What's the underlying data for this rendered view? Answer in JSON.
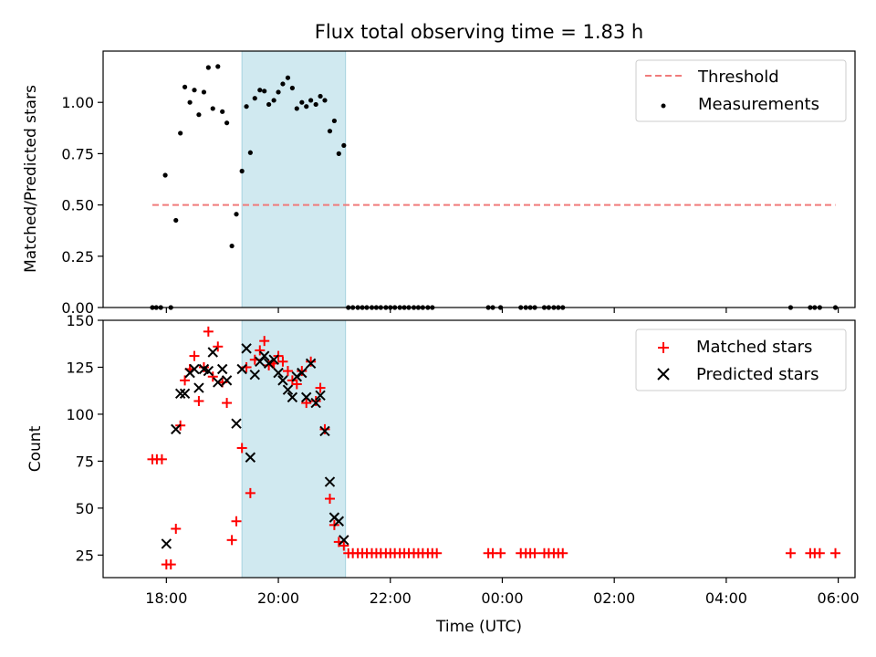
{
  "title": "Flux total observing time = 1.83 h",
  "xlabel": "Time (UTC)",
  "x_tick_labels": [
    "18:00",
    "20:00",
    "22:00",
    "00:00",
    "02:00",
    "04:00",
    "06:00"
  ],
  "chart_data": [
    {
      "type": "scatter",
      "ylabel": "Matched/Predicted stars",
      "xlim_hours": [
        16.87,
        30.3
      ],
      "ylim": [
        0,
        1.25
      ],
      "y_ticks": [
        0.0,
        0.25,
        0.5,
        0.75,
        1.0
      ],
      "y_tick_labels": [
        "0.00",
        "0.25",
        "0.50",
        "0.75",
        "1.00"
      ],
      "shaded_region_hours": [
        19.35,
        21.2
      ],
      "shade_color": "#d0e9f0",
      "legend_position": "upper-right",
      "threshold": {
        "name": "Threshold",
        "value": 0.5,
        "x_range_hours": [
          17.75,
          29.95
        ],
        "color": "#f07b7b"
      },
      "measurements": {
        "name": "Measurements",
        "color": "#000000",
        "points": [
          [
            17.75,
            0
          ],
          [
            17.82,
            0
          ],
          [
            17.9,
            0
          ],
          [
            17.98,
            0.645
          ],
          [
            18.08,
            0
          ],
          [
            18.17,
            0.425
          ],
          [
            18.25,
            0.85
          ],
          [
            18.33,
            1.075
          ],
          [
            18.42,
            1.0
          ],
          [
            18.5,
            1.06
          ],
          [
            18.58,
            0.94
          ],
          [
            18.67,
            1.05
          ],
          [
            18.75,
            1.17
          ],
          [
            18.83,
            0.97
          ],
          [
            18.92,
            1.175
          ],
          [
            19.0,
            0.955
          ],
          [
            19.08,
            0.9
          ],
          [
            19.17,
            0.3
          ],
          [
            19.25,
            0.455
          ],
          [
            19.35,
            0.665
          ],
          [
            19.43,
            0.98
          ],
          [
            19.5,
            0.755
          ],
          [
            19.58,
            1.02
          ],
          [
            19.67,
            1.06
          ],
          [
            19.75,
            1.055
          ],
          [
            19.83,
            0.99
          ],
          [
            19.92,
            1.01
          ],
          [
            20.0,
            1.05
          ],
          [
            20.08,
            1.09
          ],
          [
            20.17,
            1.12
          ],
          [
            20.25,
            1.07
          ],
          [
            20.33,
            0.97
          ],
          [
            20.42,
            1.0
          ],
          [
            20.5,
            0.98
          ],
          [
            20.58,
            1.01
          ],
          [
            20.67,
            0.99
          ],
          [
            20.75,
            1.03
          ],
          [
            20.83,
            1.01
          ],
          [
            20.92,
            0.86
          ],
          [
            21.0,
            0.91
          ],
          [
            21.08,
            0.75
          ],
          [
            21.17,
            0.79
          ],
          [
            21.25,
            0
          ],
          [
            21.33,
            0
          ],
          [
            21.42,
            0
          ],
          [
            21.5,
            0
          ],
          [
            21.58,
            0
          ],
          [
            21.67,
            0
          ],
          [
            21.75,
            0
          ],
          [
            21.83,
            0
          ],
          [
            21.92,
            0
          ],
          [
            22.0,
            0
          ],
          [
            22.08,
            0
          ],
          [
            22.17,
            0
          ],
          [
            22.25,
            0
          ],
          [
            22.33,
            0
          ],
          [
            22.42,
            0
          ],
          [
            22.5,
            0
          ],
          [
            22.58,
            0
          ],
          [
            22.67,
            0
          ],
          [
            22.75,
            0
          ],
          [
            23.75,
            0
          ],
          [
            23.83,
            0
          ],
          [
            23.97,
            0
          ],
          [
            24.33,
            0
          ],
          [
            24.42,
            0
          ],
          [
            24.5,
            0
          ],
          [
            24.58,
            0
          ],
          [
            24.75,
            0
          ],
          [
            24.83,
            0
          ],
          [
            24.92,
            0
          ],
          [
            25.0,
            0
          ],
          [
            25.08,
            0
          ],
          [
            29.15,
            0
          ],
          [
            29.5,
            0
          ],
          [
            29.58,
            0
          ],
          [
            29.67,
            0
          ],
          [
            29.95,
            0
          ]
        ]
      }
    },
    {
      "type": "scatter",
      "ylabel": "Count",
      "xlim_hours": [
        16.87,
        30.3
      ],
      "ylim": [
        13,
        150
      ],
      "y_ticks": [
        25,
        50,
        75,
        100,
        125,
        150
      ],
      "y_tick_labels": [
        "25",
        "50",
        "75",
        "100",
        "125",
        "150"
      ],
      "shaded_region_hours": [
        19.35,
        21.2
      ],
      "shade_color": "#d0e9f0",
      "legend_position": "upper-right",
      "series": [
        {
          "name": "Matched stars",
          "marker": "plus",
          "color": "#ff0000",
          "points": [
            [
              17.75,
              76
            ],
            [
              17.83,
              76
            ],
            [
              17.92,
              76
            ],
            [
              18.0,
              20
            ],
            [
              18.08,
              20
            ],
            [
              18.17,
              39
            ],
            [
              18.25,
              94
            ],
            [
              18.33,
              118
            ],
            [
              18.42,
              124
            ],
            [
              18.5,
              131
            ],
            [
              18.58,
              107
            ],
            [
              18.67,
              125
            ],
            [
              18.75,
              144
            ],
            [
              18.83,
              120
            ],
            [
              18.92,
              136
            ],
            [
              19.0,
              117
            ],
            [
              19.08,
              106
            ],
            [
              19.17,
              33
            ],
            [
              19.25,
              43
            ],
            [
              19.35,
              82
            ],
            [
              19.43,
              125
            ],
            [
              19.5,
              58
            ],
            [
              19.58,
              129
            ],
            [
              19.67,
              134
            ],
            [
              19.75,
              139
            ],
            [
              19.83,
              126
            ],
            [
              19.92,
              127
            ],
            [
              20.0,
              131
            ],
            [
              20.08,
              128
            ],
            [
              20.17,
              123
            ],
            [
              20.25,
              118
            ],
            [
              20.33,
              116
            ],
            [
              20.42,
              123
            ],
            [
              20.5,
              106
            ],
            [
              20.58,
              128
            ],
            [
              20.67,
              107
            ],
            [
              20.75,
              114
            ],
            [
              20.83,
              92
            ],
            [
              20.92,
              55
            ],
            [
              21.0,
              41
            ],
            [
              21.08,
              32
            ],
            [
              21.17,
              30
            ],
            [
              21.25,
              26
            ],
            [
              21.33,
              26
            ],
            [
              21.42,
              26
            ],
            [
              21.5,
              26
            ],
            [
              21.58,
              26
            ],
            [
              21.67,
              26
            ],
            [
              21.75,
              26
            ],
            [
              21.83,
              26
            ],
            [
              21.92,
              26
            ],
            [
              22.0,
              26
            ],
            [
              22.08,
              26
            ],
            [
              22.17,
              26
            ],
            [
              22.25,
              26
            ],
            [
              22.33,
              26
            ],
            [
              22.42,
              26
            ],
            [
              22.5,
              26
            ],
            [
              22.58,
              26
            ],
            [
              22.67,
              26
            ],
            [
              22.75,
              26
            ],
            [
              22.83,
              26
            ],
            [
              23.75,
              26
            ],
            [
              23.83,
              26
            ],
            [
              23.97,
              26
            ],
            [
              24.33,
              26
            ],
            [
              24.42,
              26
            ],
            [
              24.5,
              26
            ],
            [
              24.58,
              26
            ],
            [
              24.75,
              26
            ],
            [
              24.83,
              26
            ],
            [
              24.92,
              26
            ],
            [
              25.0,
              26
            ],
            [
              25.08,
              26
            ],
            [
              29.15,
              26
            ],
            [
              29.5,
              26
            ],
            [
              29.58,
              26
            ],
            [
              29.67,
              26
            ],
            [
              29.95,
              26
            ]
          ]
        },
        {
          "name": "Predicted stars",
          "marker": "x",
          "color": "#000000",
          "points": [
            [
              18.0,
              31
            ],
            [
              18.17,
              92
            ],
            [
              18.25,
              111
            ],
            [
              18.33,
              111
            ],
            [
              18.42,
              122
            ],
            [
              18.5,
              124
            ],
            [
              18.58,
              114
            ],
            [
              18.67,
              124
            ],
            [
              18.75,
              123
            ],
            [
              18.83,
              133
            ],
            [
              18.92,
              117
            ],
            [
              19.0,
              124
            ],
            [
              19.08,
              118
            ],
            [
              19.25,
              95
            ],
            [
              19.35,
              124
            ],
            [
              19.43,
              135
            ],
            [
              19.5,
              77
            ],
            [
              19.58,
              121
            ],
            [
              19.67,
              128
            ],
            [
              19.75,
              131
            ],
            [
              19.83,
              127
            ],
            [
              19.92,
              129
            ],
            [
              20.0,
              122
            ],
            [
              20.08,
              118
            ],
            [
              20.17,
              113
            ],
            [
              20.25,
              109
            ],
            [
              20.33,
              120
            ],
            [
              20.42,
              122
            ],
            [
              20.5,
              109
            ],
            [
              20.58,
              127
            ],
            [
              20.67,
              106
            ],
            [
              20.75,
              110
            ],
            [
              20.83,
              91
            ],
            [
              20.92,
              64
            ],
            [
              21.0,
              45
            ],
            [
              21.08,
              43
            ],
            [
              21.17,
              33
            ]
          ]
        }
      ]
    }
  ]
}
